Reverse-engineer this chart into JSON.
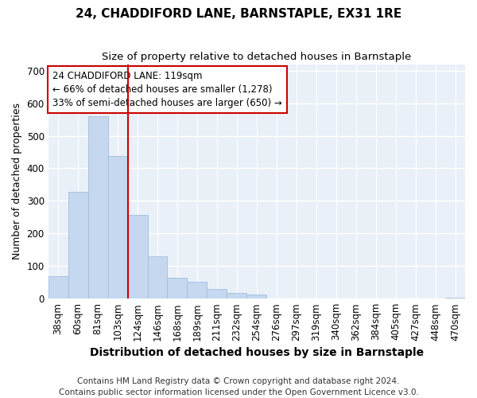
{
  "title": "24, CHADDIFORD LANE, BARNSTAPLE, EX31 1RE",
  "subtitle": "Size of property relative to detached houses in Barnstaple",
  "xlabel": "Distribution of detached houses by size in Barnstaple",
  "ylabel": "Number of detached properties",
  "bar_color": "#c5d8f0",
  "bar_edge_color": "#a0bedd",
  "background_color": "#eaf0f8",
  "grid_color": "#ffffff",
  "categories": [
    "38sqm",
    "60sqm",
    "81sqm",
    "103sqm",
    "124sqm",
    "146sqm",
    "168sqm",
    "189sqm",
    "211sqm",
    "232sqm",
    "254sqm",
    "276sqm",
    "297sqm",
    "319sqm",
    "340sqm",
    "362sqm",
    "384sqm",
    "405sqm",
    "427sqm",
    "448sqm",
    "470sqm"
  ],
  "values": [
    70,
    328,
    560,
    438,
    258,
    130,
    65,
    52,
    30,
    18,
    13,
    0,
    0,
    0,
    0,
    0,
    0,
    0,
    0,
    0,
    4
  ],
  "vline_color": "#cc0000",
  "vline_index": 3.5,
  "annotation_text": "24 CHADDIFORD LANE: 119sqm\n← 66% of detached houses are smaller (1,278)\n33% of semi-detached houses are larger (650) →",
  "annotation_box_color": "#ffffff",
  "annotation_box_edge_color": "#cc0000",
  "ylim": [
    0,
    720
  ],
  "yticks": [
    0,
    100,
    200,
    300,
    400,
    500,
    600,
    700
  ],
  "footer": "Contains HM Land Registry data © Crown copyright and database right 2024.\nContains public sector information licensed under the Open Government Licence v3.0.",
  "title_fontsize": 11,
  "subtitle_fontsize": 9.5,
  "xlabel_fontsize": 10,
  "ylabel_fontsize": 9,
  "tick_fontsize": 8.5,
  "annotation_fontsize": 8.5,
  "footer_fontsize": 7.5
}
